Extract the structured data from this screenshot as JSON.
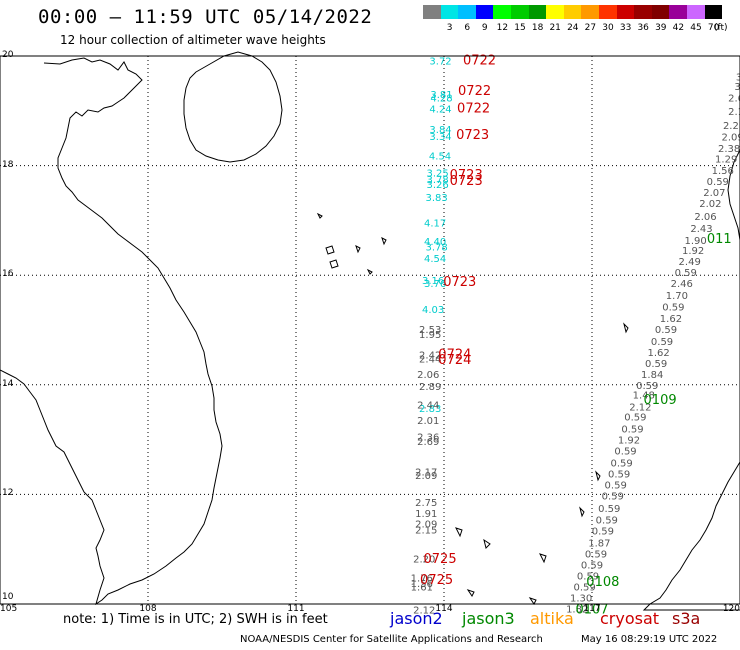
{
  "header": {
    "title": "00:00 – 11:59 UTC 05/14/2022",
    "subtitle": "12 hour collection of altimeter wave heights"
  },
  "colorbar": {
    "unit_label": "(ft)",
    "bins": [
      {
        "label": "",
        "color": "#808080"
      },
      {
        "label": "3",
        "color": "#00e5e5"
      },
      {
        "label": "6",
        "color": "#00bfff"
      },
      {
        "label": "9",
        "color": "#0000ff"
      },
      {
        "label": "12",
        "color": "#00ff00"
      },
      {
        "label": "15",
        "color": "#00cc00"
      },
      {
        "label": "18",
        "color": "#009900"
      },
      {
        "label": "21",
        "color": "#ffff00"
      },
      {
        "label": "24",
        "color": "#ffcc00"
      },
      {
        "label": "27",
        "color": "#ff9900"
      },
      {
        "label": "30",
        "color": "#ff3300"
      },
      {
        "label": "33",
        "color": "#cc0000"
      },
      {
        "label": "36",
        "color": "#990000"
      },
      {
        "label": "39",
        "color": "#800000"
      },
      {
        "label": "42",
        "color": "#990099"
      },
      {
        "label": "45",
        "color": "#cc66ff"
      },
      {
        "label": "70",
        "color": "#000000"
      }
    ]
  },
  "axes": {
    "lat_labels": [
      {
        "lat": 20,
        "text": "20"
      },
      {
        "lat": 18,
        "text": "18"
      },
      {
        "lat": 16,
        "text": "16"
      },
      {
        "lat": 14,
        "text": "14"
      },
      {
        "lat": 12,
        "text": "12"
      },
      {
        "lat": 10,
        "text": "10"
      }
    ],
    "lon_labels": [
      {
        "lon": 105,
        "text": "105"
      },
      {
        "lon": 108,
        "text": "108"
      },
      {
        "lon": 111,
        "text": "111"
      },
      {
        "lon": 114,
        "text": "114"
      },
      {
        "lon": 117,
        "text": "117"
      },
      {
        "lon": 120,
        "text": "120"
      }
    ],
    "lon_range": [
      105,
      120
    ],
    "lat_range": [
      10,
      20
    ]
  },
  "legend": {
    "note": "note:  1) Time is in UTC;  2) SWH is in feet",
    "satellites": [
      {
        "name": "jason2",
        "color": "#0000cc"
      },
      {
        "name": "jason3",
        "color": "#008800"
      },
      {
        "name": "altika",
        "color": "#ff9900"
      },
      {
        "name": "cryosat",
        "color": "#cc0000"
      },
      {
        "name": "s3a",
        "color": "#990000"
      }
    ]
  },
  "footer": {
    "credit": "NOAA/NESDIS Center for Satellite Applications and Research",
    "generated": "May 16 08:29:19 UTC 2022"
  },
  "tracks": {
    "cyan_track": [
      {
        "lon": 113.93,
        "lat": 19.92,
        "text": "3.72"
      },
      {
        "lon": 113.95,
        "lat": 19.31,
        "text": "3.81"
      },
      {
        "lon": 113.95,
        "lat": 19.24,
        "text": "4.28"
      },
      {
        "lon": 113.93,
        "lat": 19.04,
        "text": "4.24"
      },
      {
        "lon": 113.93,
        "lat": 18.67,
        "text": "3.84"
      },
      {
        "lon": 113.93,
        "lat": 18.54,
        "text": "3.34"
      },
      {
        "lon": 113.92,
        "lat": 18.18,
        "text": "4.54"
      },
      {
        "lon": 113.87,
        "lat": 17.87,
        "text": "3.25"
      },
      {
        "lon": 113.87,
        "lat": 17.76,
        "text": "3.78"
      },
      {
        "lon": 113.87,
        "lat": 17.66,
        "text": "3.26"
      },
      {
        "lon": 113.85,
        "lat": 17.43,
        "text": "3.83"
      },
      {
        "lon": 113.82,
        "lat": 16.96,
        "text": "4.17"
      },
      {
        "lon": 113.82,
        "lat": 16.62,
        "text": "4.40"
      },
      {
        "lon": 113.85,
        "lat": 16.52,
        "text": "3.78"
      },
      {
        "lon": 113.82,
        "lat": 16.31,
        "text": "4.54"
      },
      {
        "lon": 113.78,
        "lat": 15.91,
        "text": "3.16"
      },
      {
        "lon": 113.82,
        "lat": 15.86,
        "text": "3.76"
      },
      {
        "lon": 113.78,
        "lat": 15.38,
        "text": "4.03"
      },
      {
        "lon": 113.72,
        "lat": 13.58,
        "text": "2.83"
      }
    ],
    "gray_track_west": [
      {
        "lon": 113.72,
        "lat": 15.02,
        "text": "2.53"
      },
      {
        "lon": 113.72,
        "lat": 14.93,
        "text": "1.95"
      },
      {
        "lon": 113.72,
        "lat": 14.55,
        "text": "2.42"
      },
      {
        "lon": 113.72,
        "lat": 14.48,
        "text": "2.44"
      },
      {
        "lon": 113.68,
        "lat": 14.2,
        "text": "2.06"
      },
      {
        "lon": 113.72,
        "lat": 13.98,
        "text": "2.89"
      },
      {
        "lon": 113.68,
        "lat": 13.64,
        "text": "2.44"
      },
      {
        "lon": 113.68,
        "lat": 13.36,
        "text": "2.01"
      },
      {
        "lon": 113.68,
        "lat": 13.06,
        "text": "2.36"
      },
      {
        "lon": 113.68,
        "lat": 12.97,
        "text": "2.69"
      },
      {
        "lon": 113.64,
        "lat": 12.42,
        "text": "2.17"
      },
      {
        "lon": 113.64,
        "lat": 12.35,
        "text": "2.09"
      },
      {
        "lon": 113.64,
        "lat": 11.86,
        "text": "2.75"
      },
      {
        "lon": 113.64,
        "lat": 11.66,
        "text": "1.91"
      },
      {
        "lon": 113.64,
        "lat": 11.47,
        "text": "2.09"
      },
      {
        "lon": 113.64,
        "lat": 11.36,
        "text": "2.15"
      },
      {
        "lon": 113.6,
        "lat": 10.83,
        "text": "2.20"
      },
      {
        "lon": 113.55,
        "lat": 10.48,
        "text": "1.76"
      },
      {
        "lon": 113.55,
        "lat": 10.38,
        "text": "1.56"
      },
      {
        "lon": 113.55,
        "lat": 10.32,
        "text": "1.61"
      },
      {
        "lon": 113.6,
        "lat": 9.9,
        "text": "2.12"
      }
    ],
    "gray_track_east": [
      {
        "lon": 119.98,
        "lat": 19.63,
        "text": "3"
      },
      {
        "lon": 119.95,
        "lat": 19.45,
        "text": "3"
      },
      {
        "lon": 119.92,
        "lat": 19.24,
        "text": "2.6"
      },
      {
        "lon": 119.92,
        "lat": 19.0,
        "text": "2.1"
      },
      {
        "lon": 119.88,
        "lat": 18.74,
        "text": "2.25"
      },
      {
        "lon": 119.85,
        "lat": 18.53,
        "text": "2.09"
      },
      {
        "lon": 119.78,
        "lat": 18.32,
        "text": "2.38"
      },
      {
        "lon": 119.72,
        "lat": 18.13,
        "text": "1.29"
      },
      {
        "lon": 119.65,
        "lat": 17.92,
        "text": "1.56"
      },
      {
        "lon": 119.55,
        "lat": 17.72,
        "text": "0.59"
      },
      {
        "lon": 119.48,
        "lat": 17.52,
        "text": "2.07"
      },
      {
        "lon": 119.4,
        "lat": 17.32,
        "text": "2.02"
      },
      {
        "lon": 119.3,
        "lat": 17.08,
        "text": "2.06"
      },
      {
        "lon": 119.22,
        "lat": 16.86,
        "text": "2.43"
      },
      {
        "lon": 119.1,
        "lat": 16.64,
        "text": "1.90"
      },
      {
        "lon": 119.05,
        "lat": 16.46,
        "text": "1.92"
      },
      {
        "lon": 118.98,
        "lat": 16.26,
        "text": "2.49"
      },
      {
        "lon": 118.9,
        "lat": 16.06,
        "text": "0.59"
      },
      {
        "lon": 118.82,
        "lat": 15.86,
        "text": "2.46"
      },
      {
        "lon": 118.72,
        "lat": 15.64,
        "text": "1.70"
      },
      {
        "lon": 118.65,
        "lat": 15.43,
        "text": "0.59"
      },
      {
        "lon": 118.6,
        "lat": 15.22,
        "text": "1.62"
      },
      {
        "lon": 118.5,
        "lat": 15.02,
        "text": "0.59"
      },
      {
        "lon": 118.42,
        "lat": 14.8,
        "text": "0.59"
      },
      {
        "lon": 118.35,
        "lat": 14.6,
        "text": "1.62"
      },
      {
        "lon": 118.3,
        "lat": 14.4,
        "text": "0.59"
      },
      {
        "lon": 118.22,
        "lat": 14.2,
        "text": "1.84"
      },
      {
        "lon": 118.12,
        "lat": 14.0,
        "text": "0.59"
      },
      {
        "lon": 118.05,
        "lat": 13.82,
        "text": "1.48"
      },
      {
        "lon": 117.98,
        "lat": 13.6,
        "text": "2.12"
      },
      {
        "lon": 117.88,
        "lat": 13.42,
        "text": "0.59"
      },
      {
        "lon": 117.82,
        "lat": 13.2,
        "text": "0.59"
      },
      {
        "lon": 117.75,
        "lat": 13.0,
        "text": "1.92"
      },
      {
        "lon": 117.68,
        "lat": 12.8,
        "text": "0.59"
      },
      {
        "lon": 117.6,
        "lat": 12.58,
        "text": "0.59"
      },
      {
        "lon": 117.55,
        "lat": 12.38,
        "text": "0.59"
      },
      {
        "lon": 117.48,
        "lat": 12.18,
        "text": "0.59"
      },
      {
        "lon": 117.42,
        "lat": 11.98,
        "text": "0.59"
      },
      {
        "lon": 117.35,
        "lat": 11.75,
        "text": "0.59"
      },
      {
        "lon": 117.3,
        "lat": 11.54,
        "text": "0.59"
      },
      {
        "lon": 117.22,
        "lat": 11.34,
        "text": "0.59"
      },
      {
        "lon": 117.15,
        "lat": 11.12,
        "text": "1.87"
      },
      {
        "lon": 117.08,
        "lat": 10.92,
        "text": "0.59"
      },
      {
        "lon": 117.0,
        "lat": 10.72,
        "text": "0.59"
      },
      {
        "lon": 116.92,
        "lat": 10.52,
        "text": "0.59"
      },
      {
        "lon": 116.85,
        "lat": 10.32,
        "text": "0.59"
      },
      {
        "lon": 116.78,
        "lat": 10.12,
        "text": "1.30"
      },
      {
        "lon": 116.7,
        "lat": 9.92,
        "text": "1.82"
      }
    ],
    "time_labels": [
      {
        "lon": 114.72,
        "lat": 19.92,
        "text": "0722",
        "color": "#cc0000"
      },
      {
        "lon": 114.62,
        "lat": 19.36,
        "text": "0722",
        "color": "#cc0000"
      },
      {
        "lon": 114.6,
        "lat": 19.04,
        "text": "0722",
        "color": "#cc0000"
      },
      {
        "lon": 114.58,
        "lat": 18.56,
        "text": "0723",
        "color": "#cc0000"
      },
      {
        "lon": 114.45,
        "lat": 17.83,
        "text": "0723",
        "color": "#cc0000"
      },
      {
        "lon": 114.45,
        "lat": 17.72,
        "text": "0723",
        "color": "#cc0000"
      },
      {
        "lon": 114.32,
        "lat": 15.88,
        "text": "0723",
        "color": "#cc0000"
      },
      {
        "lon": 114.22,
        "lat": 14.55,
        "text": "0724",
        "color": "#cc0000"
      },
      {
        "lon": 114.22,
        "lat": 14.45,
        "text": "0724",
        "color": "#cc0000"
      },
      {
        "lon": 113.92,
        "lat": 10.82,
        "text": "0725",
        "color": "#cc0000"
      },
      {
        "lon": 113.85,
        "lat": 10.44,
        "text": "0725",
        "color": "#cc0000"
      },
      {
        "lon": 119.58,
        "lat": 16.66,
        "text": "011",
        "color": "#008800"
      },
      {
        "lon": 118.38,
        "lat": 13.72,
        "text": "0109",
        "color": "#008800"
      },
      {
        "lon": 117.22,
        "lat": 10.4,
        "text": "0108",
        "color": "#008800"
      },
      {
        "lon": 117.0,
        "lat": 9.9,
        "text": "0107",
        "color": "#008800"
      }
    ]
  }
}
